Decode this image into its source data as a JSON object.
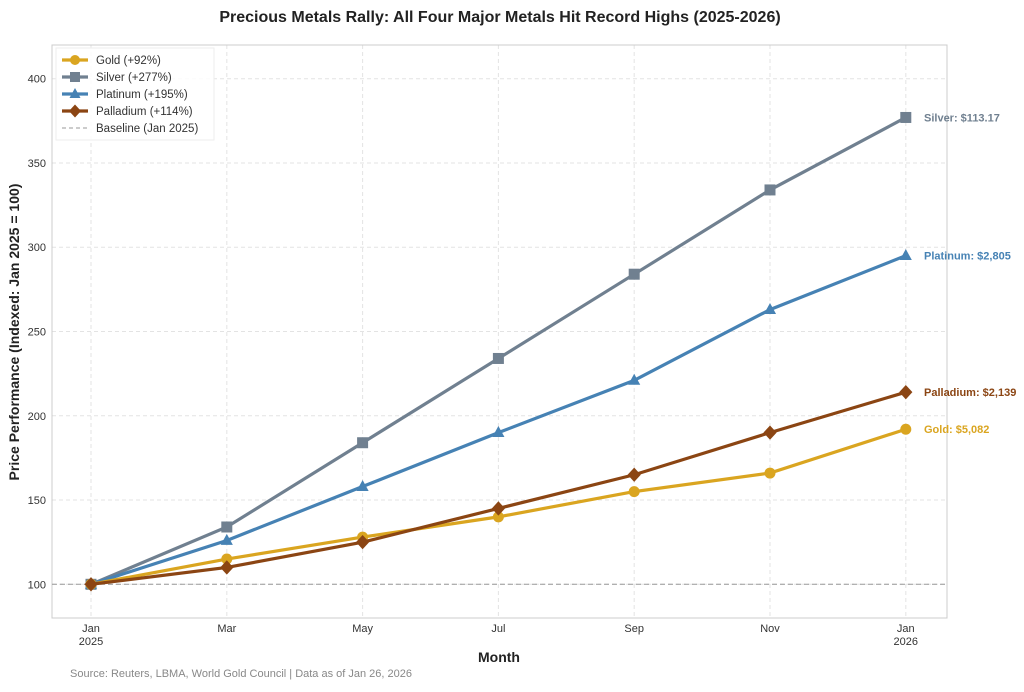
{
  "chart_data": {
    "type": "line",
    "title": "Precious Metals Rally: All Four Major Metals Hit Record Highs (2025-2026)",
    "xlabel": "Month",
    "ylabel": "Price Performance (Indexed: Jan 2025 = 100)",
    "x_ticks": [
      [
        "Jan",
        "2025"
      ],
      [
        "Mar",
        ""
      ],
      [
        "May",
        ""
      ],
      [
        "Jul",
        ""
      ],
      [
        "Sep",
        ""
      ],
      [
        "Nov",
        ""
      ],
      [
        "Jan",
        "2026"
      ]
    ],
    "y_ticks": [
      100,
      150,
      200,
      250,
      300,
      350,
      400
    ],
    "ylim": [
      80,
      420
    ],
    "grid": true,
    "legend_position": "top-left",
    "series": [
      {
        "name": "Gold (+92%)",
        "color": "#DAA520",
        "marker": "circle",
        "values": [
          100,
          115,
          128,
          140,
          155,
          166,
          192
        ],
        "end_label": "Gold: $5,082"
      },
      {
        "name": "Silver (+277%)",
        "color": "#708090",
        "marker": "square",
        "values": [
          100,
          134,
          184,
          234,
          284,
          334,
          377
        ],
        "end_label": "Silver: $113.17"
      },
      {
        "name": "Platinum (+195%)",
        "color": "#4682B4",
        "marker": "triangle",
        "values": [
          100,
          126,
          158,
          190,
          221,
          263,
          295
        ],
        "end_label": "Platinum: $2,805"
      },
      {
        "name": "Palladium (+114%)",
        "color": "#8B4513",
        "marker": "diamond",
        "values": [
          100,
          110,
          125,
          145,
          165,
          190,
          214
        ],
        "end_label": "Palladium: $2,139"
      }
    ],
    "baseline": {
      "name": "Baseline (Jan 2025)",
      "value": 100,
      "color": "#999999"
    },
    "source": "Source: Reuters, LBMA, World Gold Council | Data as of Jan 26, 2026"
  }
}
